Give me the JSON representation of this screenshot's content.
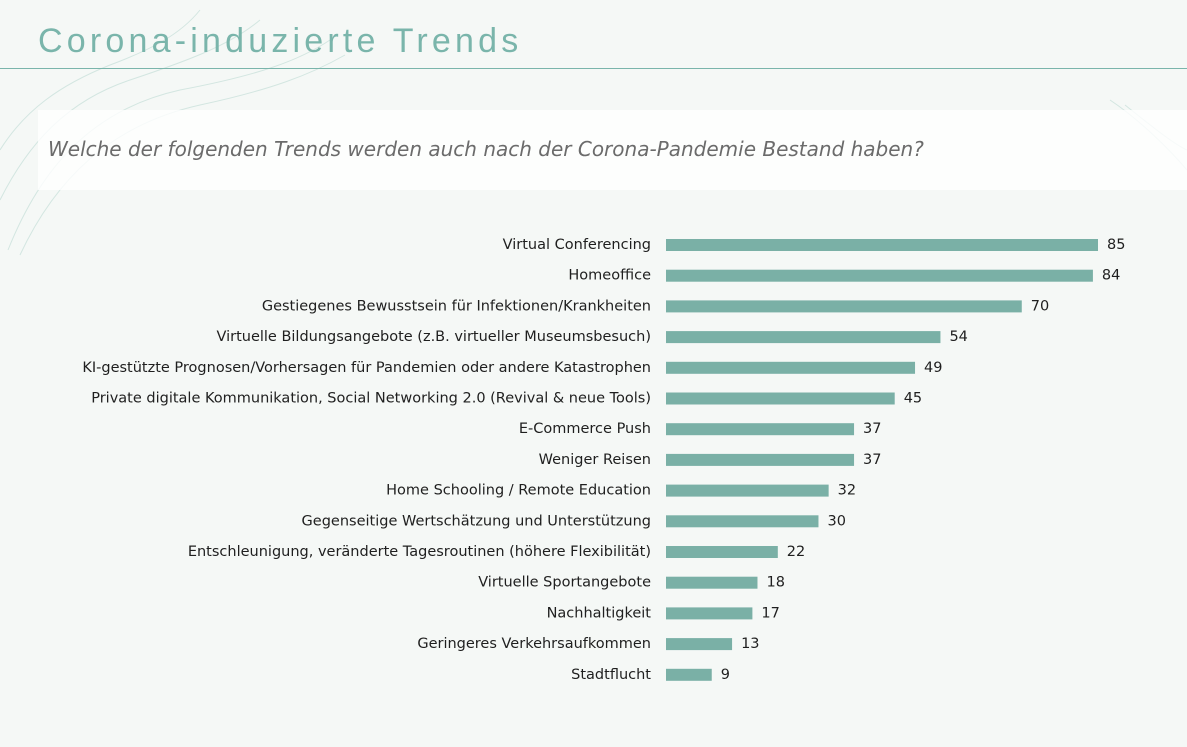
{
  "page": {
    "title": "Corona-induzierte Trends",
    "question": "Welche der folgenden Trends werden auch nach der Corona-Pandemie Bestand haben?"
  },
  "colors": {
    "accent": "#7ab5ab",
    "bar": "#7ab0a6",
    "background": "#f5f8f6"
  },
  "chart_data": {
    "type": "bar",
    "orientation": "horizontal",
    "categories": [
      "Virtual Conferencing",
      "Homeoffice",
      "Gestiegenes Bewusstsein für Infektionen/Krankheiten",
      "Virtuelle Bildungsangebote (z.B. virtueller Museumsbesuch)",
      "KI-gestützte Prognosen/Vorhersagen für Pandemien oder andere Katastrophen",
      "Private digitale Kommunikation, Social Networking 2.0 (Revival & neue Tools)",
      "E-Commerce Push",
      "Weniger Reisen",
      "Home Schooling / Remote Education",
      "Gegenseitige Wertschätzung und Unterstützung",
      "Entschleunigung, veränderte Tagesroutinen (höhere Flexibilität)",
      "Virtuelle Sportangebote",
      "Nachhaltigkeit",
      "Geringeres Verkehrsaufkommen",
      "Stadtflucht"
    ],
    "values": [
      85,
      84,
      70,
      54,
      49,
      45,
      37,
      37,
      32,
      30,
      22,
      18,
      17,
      13,
      9
    ],
    "title": "Welche der folgenden Trends werden auch nach der Corona-Pandemie Bestand haben?",
    "xlabel": "",
    "ylabel": "",
    "xlim": [
      0,
      85
    ],
    "grid": false,
    "data_labels": true
  }
}
